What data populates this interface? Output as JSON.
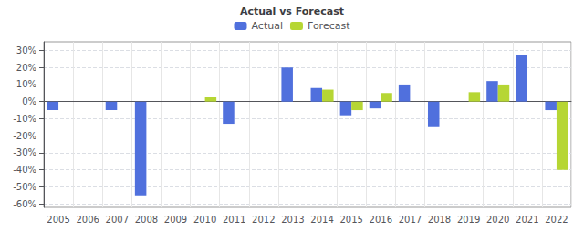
{
  "chart_data": {
    "type": "bar",
    "legend_title": "Actual vs Forecast",
    "categories": [
      "2005",
      "2006",
      "2007",
      "2008",
      "2009",
      "2010",
      "2011",
      "2012",
      "2013",
      "2014",
      "2015",
      "2016",
      "2017",
      "2018",
      "2019",
      "2020",
      "2021",
      "2022"
    ],
    "series": [
      {
        "name": "Actual",
        "values": [
          -5.0,
          0.0,
          -5.0,
          -55.0,
          0.0,
          0.0,
          -13.0,
          0.0,
          20.0,
          8.0,
          -8.0,
          -4.0,
          10.0,
          -15.0,
          0.0,
          12.0,
          27.0,
          -5.0
        ]
      },
      {
        "name": "Forecast",
        "values": [
          0.0,
          0.0,
          0.0,
          0.0,
          0.0,
          2.5,
          0.0,
          0.0,
          0.0,
          7.0,
          -5.0,
          5.0,
          0.0,
          0.0,
          5.5,
          10.0,
          0.0,
          -40.0
        ]
      }
    ],
    "ylim": [
      -62,
      35
    ],
    "yticks": [
      {
        "value": -60,
        "label": "-60%"
      },
      {
        "value": -50,
        "label": "-50%"
      },
      {
        "value": -40,
        "label": "-40%"
      },
      {
        "value": -30,
        "label": "-30%"
      },
      {
        "value": -20,
        "label": "-20%"
      },
      {
        "value": -10,
        "label": "-10%"
      },
      {
        "value": 0,
        "label": "0%"
      },
      {
        "value": 10,
        "label": "10%"
      },
      {
        "value": 20,
        "label": "20%"
      },
      {
        "value": 30,
        "label": "30%"
      }
    ],
    "grid": true,
    "legend": "upper center"
  }
}
